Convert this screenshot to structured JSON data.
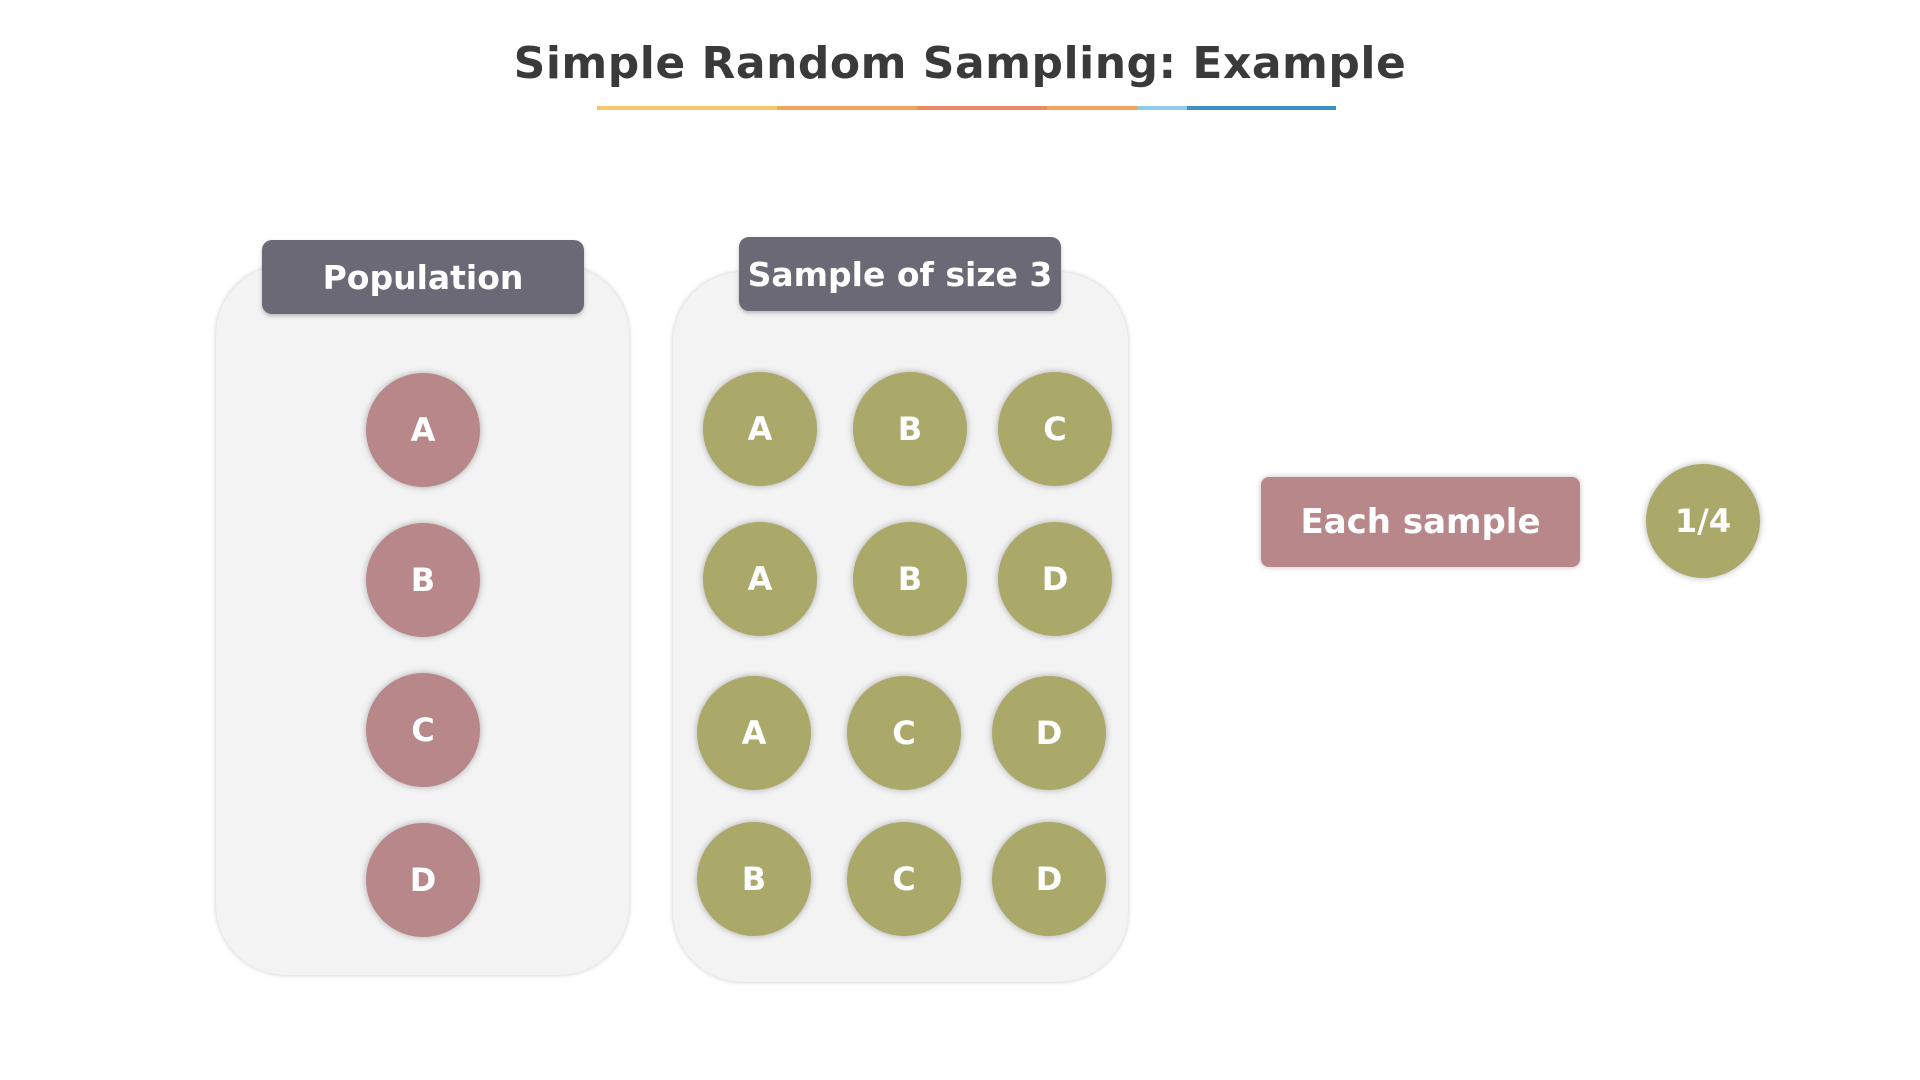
{
  "title": "Simple Random Sampling: Example",
  "underline_colors": [
    "#f7c86a",
    "#f0a45c",
    "#ea8a66",
    "#f0a45c",
    "#8fcbe8",
    "#3d8fc4"
  ],
  "population": {
    "header": "Population",
    "items": [
      "A",
      "B",
      "C",
      "D"
    ],
    "color": "#b8878a"
  },
  "samples": {
    "header": "Sample of size 3",
    "rows": [
      [
        "A",
        "B",
        "C"
      ],
      [
        "A",
        "B",
        "D"
      ],
      [
        "A",
        "C",
        "D"
      ],
      [
        "B",
        "C",
        "D"
      ]
    ],
    "color": "#aaa96a"
  },
  "result": {
    "label": "Each sample",
    "value": "1/4"
  }
}
